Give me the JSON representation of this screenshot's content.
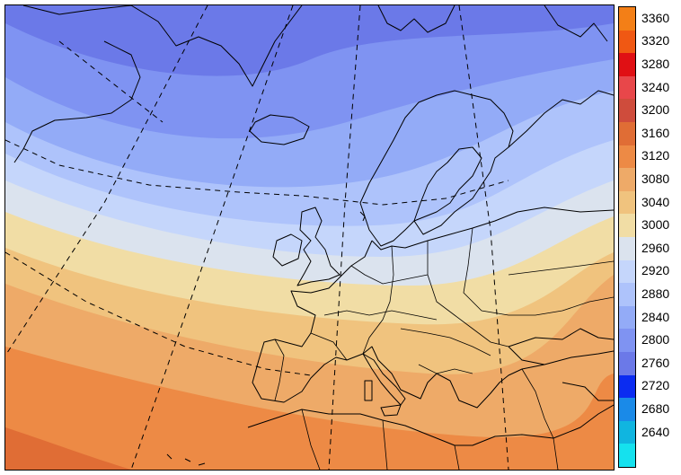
{
  "map": {
    "field_bands": [
      {
        "value": 2800,
        "color": "#6b79e8"
      },
      {
        "value": 2840,
        "color": "#7f93f2"
      },
      {
        "value": 2880,
        "color": "#93abf7"
      },
      {
        "value": 2920,
        "color": "#aec3fb"
      },
      {
        "value": 2960,
        "color": "#c5d6fb"
      },
      {
        "value": 3000,
        "color": "#dbe3ee"
      },
      {
        "value": 3040,
        "color": "#f1dda5"
      },
      {
        "value": 3080,
        "color": "#f0c37e"
      },
      {
        "value": 3120,
        "color": "#eeaa68"
      },
      {
        "value": 3160,
        "color": "#ed8a45"
      },
      {
        "value": 3200,
        "color": "#e06d35"
      }
    ],
    "graticule_style": "dashed",
    "coastlines": "black"
  },
  "legend": {
    "entries": [
      {
        "label": "3360",
        "color": "#f37f17"
      },
      {
        "label": "3320",
        "color": "#f05813"
      },
      {
        "label": "3280",
        "color": "#e01014"
      },
      {
        "label": "3240",
        "color": "#e8474a"
      },
      {
        "label": "3200",
        "color": "#cf4c3c"
      },
      {
        "label": "3160",
        "color": "#e06d35"
      },
      {
        "label": "3120",
        "color": "#ed8a45"
      },
      {
        "label": "3080",
        "color": "#eeaa68"
      },
      {
        "label": "3040",
        "color": "#f0c37e"
      },
      {
        "label": "3000",
        "color": "#f1dda5"
      },
      {
        "label": "2960",
        "color": "#dbe3ee"
      },
      {
        "label": "2920",
        "color": "#c5d6fb"
      },
      {
        "label": "2880",
        "color": "#aec3fb"
      },
      {
        "label": "2840",
        "color": "#93abf7"
      },
      {
        "label": "2800",
        "color": "#7f93f2"
      },
      {
        "label": "2760",
        "color": "#6b79e8"
      },
      {
        "label": "2720",
        "color": "#0b2cf1"
      },
      {
        "label": "2680",
        "color": "#1a8ae8"
      },
      {
        "label": "2640",
        "color": "#10b5e0"
      },
      {
        "label": "",
        "color": "#15e1ee"
      }
    ]
  }
}
